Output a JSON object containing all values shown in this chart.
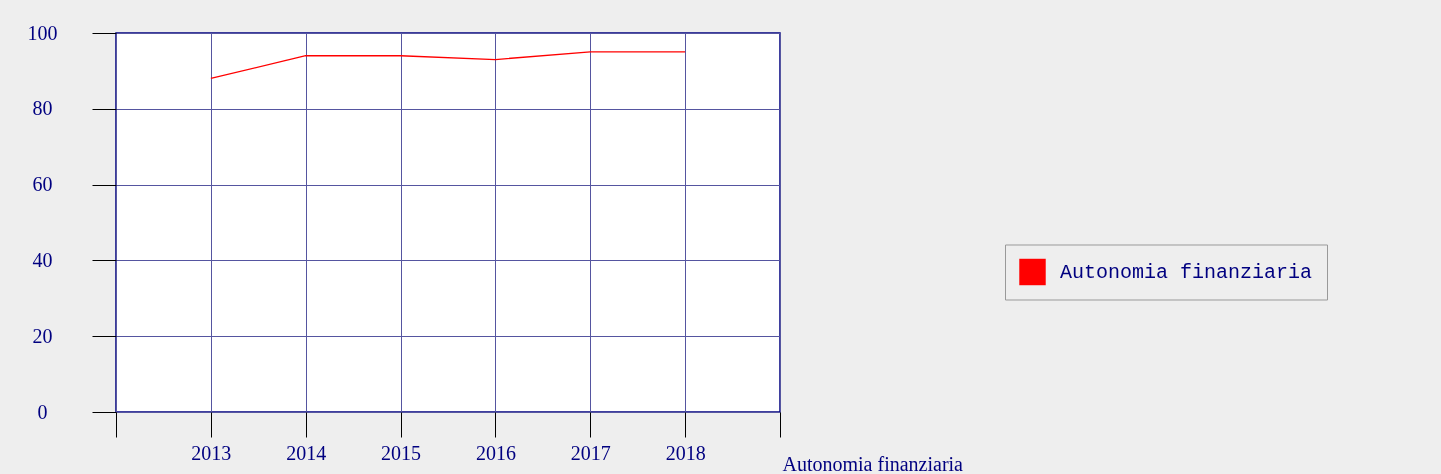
{
  "chart_data": {
    "type": "line",
    "xlabel": "Autonomia finanziaria",
    "x": [
      2013,
      2014,
      2015,
      2016,
      2017,
      2018
    ],
    "series": [
      {
        "name": "Autonomia finanziaria",
        "color": "#ff0000",
        "values": [
          88,
          94,
          94,
          93,
          95,
          95
        ]
      }
    ],
    "xlim": [
      2012,
      2019
    ],
    "xticks": [
      {
        "value": 2012,
        "label": null
      },
      2013,
      2014,
      2015,
      2016,
      2017,
      2018,
      {
        "value": 2019,
        "label": null
      }
    ],
    "ylim": [
      0,
      100
    ],
    "yticks": [
      0,
      20,
      40,
      60,
      80,
      100
    ],
    "grid": true,
    "legend": "right",
    "marker": "none",
    "line_style": "solid"
  }
}
